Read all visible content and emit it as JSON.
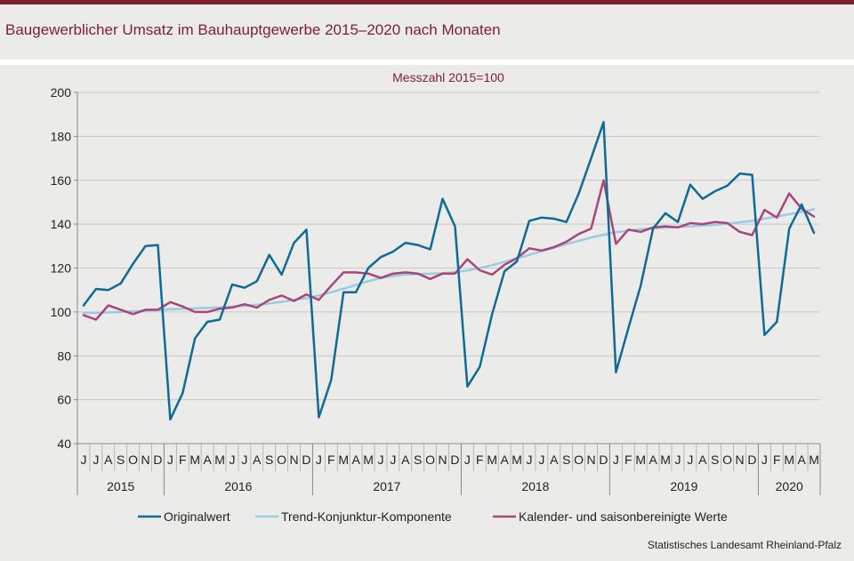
{
  "header": {
    "title": "Baugewerblicher Umsatz im Bauhauptgewerbe 2015–2020 nach Monaten"
  },
  "footer": {
    "source": "Statistisches Landesamt Rheinland-Pfalz"
  },
  "chart_data": {
    "type": "line",
    "subtitle": "Messzahl 2015=100",
    "ylim": [
      40,
      200
    ],
    "yticks": [
      40,
      60,
      80,
      100,
      120,
      140,
      160,
      180,
      200
    ],
    "grid": true,
    "legend_position": "bottom",
    "months": [
      "J",
      "J",
      "A",
      "S",
      "O",
      "N",
      "D",
      "J",
      "F",
      "M",
      "A",
      "M",
      "J",
      "J",
      "A",
      "S",
      "O",
      "N",
      "D",
      "J",
      "F",
      "M",
      "A",
      "M",
      "J",
      "J",
      "A",
      "S",
      "O",
      "N",
      "D",
      "J",
      "F",
      "M",
      "A",
      "M",
      "J",
      "J",
      "A",
      "S",
      "O",
      "N",
      "D",
      "J",
      "F",
      "M",
      "A",
      "M",
      "J",
      "J",
      "A",
      "S",
      "O",
      "N",
      "D",
      "J",
      "F",
      "M",
      "A",
      "M"
    ],
    "years": [
      {
        "label": "2015",
        "months": 7
      },
      {
        "label": "2016",
        "months": 12
      },
      {
        "label": "2017",
        "months": 12
      },
      {
        "label": "2018",
        "months": 12
      },
      {
        "label": "2019",
        "months": 12
      },
      {
        "label": "2020",
        "months": 5
      }
    ],
    "series": [
      {
        "name": "Originalwert",
        "color": "#0f6b96",
        "values": [
          103,
          110.5,
          110,
          113,
          122,
          130,
          130.5,
          51,
          63,
          88,
          95.5,
          96.5,
          112.5,
          111,
          114,
          126,
          117,
          131.5,
          137.5,
          52,
          69,
          109,
          109,
          120,
          125,
          127.5,
          131.5,
          130.5,
          128.5,
          151.5,
          139,
          66,
          75,
          99,
          118.5,
          123,
          141.5,
          143,
          142.5,
          141,
          154,
          170,
          186.5,
          72.5,
          92.5,
          112,
          138,
          145,
          141,
          158,
          151.5,
          155,
          157.5,
          163,
          162.5,
          89.5,
          95.5,
          138,
          149,
          136
        ]
      },
      {
        "name": "Trend-Konjunktur-Komponente",
        "color": "#9ccbe0",
        "values": [
          99.5,
          99.6,
          99.8,
          100,
          100.3,
          100.6,
          100.9,
          101.2,
          101.4,
          101.7,
          101.9,
          102.1,
          102.4,
          102.8,
          103.3,
          103.9,
          104.6,
          105.4,
          106.3,
          107.5,
          109,
          110.6,
          112.3,
          114,
          115.4,
          116.4,
          117,
          117.3,
          117.4,
          117.6,
          118.1,
          118.9,
          120,
          121.3,
          122.8,
          124.4,
          126,
          127.7,
          129.3,
          130.9,
          132.4,
          133.9,
          135.2,
          136.3,
          137.1,
          137.7,
          138.1,
          138.4,
          138.7,
          139,
          139.4,
          139.7,
          140.2,
          140.8,
          141.5,
          142.5,
          143.5,
          144.5,
          145.6,
          146.8
        ]
      },
      {
        "name": "Kalender- und saisonbereinigte Werte",
        "color": "#a84679",
        "values": [
          98.5,
          96.5,
          103,
          101,
          99,
          101,
          101,
          104.5,
          102.5,
          100,
          100,
          101.5,
          102,
          103.5,
          102,
          105.5,
          107.5,
          105,
          108,
          105.5,
          112,
          118,
          118,
          117.5,
          115.5,
          117.5,
          118,
          117.5,
          115,
          117.5,
          117.5,
          124,
          119,
          117,
          121.5,
          124.5,
          129,
          128,
          129.5,
          132,
          135.5,
          138,
          160,
          131,
          137.5,
          136.5,
          138.5,
          139,
          138.5,
          140.5,
          140,
          141,
          140.5,
          136.5,
          135,
          146.5,
          143,
          154,
          147,
          143.5
        ]
      }
    ]
  }
}
